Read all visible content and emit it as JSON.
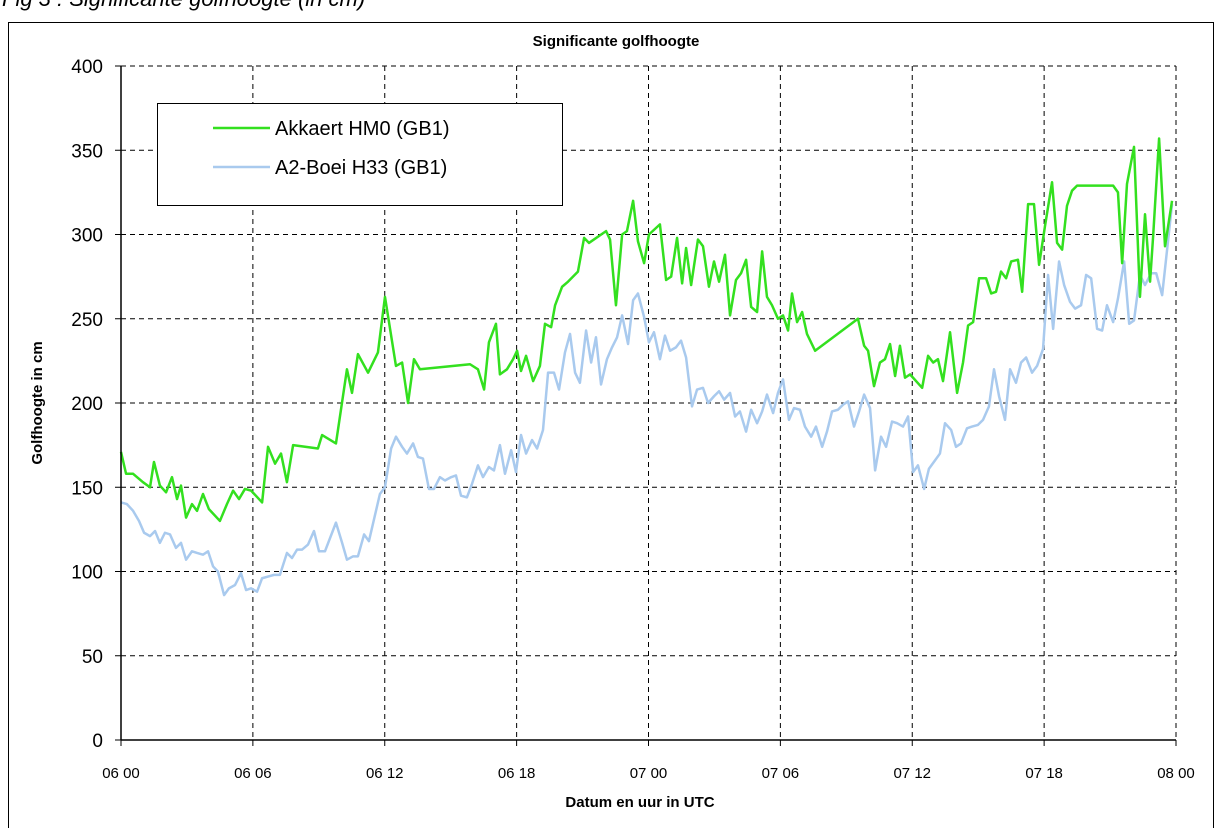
{
  "chart_data": {
    "type": "line",
    "caption": "Fig 3 : Significante golfhoogte (in cm)",
    "title": "Significante golfhoogte",
    "x_label": "Datum en uur in UTC",
    "y_label": "Golfhoogte in cm",
    "xlim": [
      0,
      48
    ],
    "xticks": [
      {
        "value": 0,
        "label": "06 00"
      },
      {
        "value": 6,
        "label": "06 06"
      },
      {
        "value": 12,
        "label": "06 12"
      },
      {
        "value": 18,
        "label": "06 18"
      },
      {
        "value": 24,
        "label": "07 00"
      },
      {
        "value": 30,
        "label": "07 06"
      },
      {
        "value": 36,
        "label": "07 12"
      },
      {
        "value": 42,
        "label": "07 18"
      },
      {
        "value": 48,
        "label": "08 00"
      }
    ],
    "ylim": [
      0,
      400
    ],
    "yticks": [
      0,
      50,
      100,
      150,
      200,
      250,
      300,
      350,
      400
    ],
    "grid": true,
    "legend": "upper left",
    "series": [
      {
        "name": "Akkaert HM0 (GB1)",
        "color": "#33e01f",
        "x": [
          0,
          0.23,
          0.55,
          1.0,
          1.32,
          1.5,
          1.77,
          2.05,
          2.32,
          2.55,
          2.73,
          2.96,
          3.23,
          3.46,
          3.73,
          4.0,
          4.5,
          4.82,
          5.1,
          5.37,
          5.64,
          5.92,
          6.42,
          6.69,
          7.01,
          7.28,
          7.55,
          7.83,
          8.96,
          9.15,
          9.78,
          10.28,
          10.51,
          10.78,
          11.24,
          11.69,
          12.01,
          12.51,
          12.79,
          13.06,
          13.33,
          13.6,
          15.88,
          16.24,
          16.52,
          16.74,
          17.06,
          17.24,
          17.56,
          17.84,
          18.02,
          18.2,
          18.43,
          18.75,
          19.06,
          19.29,
          19.57,
          19.75,
          20.07,
          20.34,
          20.79,
          21.07,
          21.29,
          22.07,
          22.25,
          22.52,
          22.8,
          23.02,
          23.3,
          23.52,
          23.8,
          24.02,
          24.52,
          24.8,
          25.03,
          25.3,
          25.53,
          25.71,
          25.94,
          26.25,
          26.48,
          26.75,
          26.98,
          27.21,
          27.48,
          27.71,
          27.98,
          28.21,
          28.44,
          28.67,
          28.94,
          29.17,
          29.39,
          29.62,
          29.89,
          30.12,
          30.35,
          30.53,
          30.76,
          30.99,
          31.21,
          31.58,
          33.53,
          33.81,
          33.99,
          34.26,
          34.53,
          34.76,
          34.99,
          35.22,
          35.44,
          35.67,
          35.9,
          36.45,
          36.72,
          36.95,
          37.17,
          37.4,
          37.72,
          38.04,
          38.31,
          38.54,
          38.77,
          39.04,
          39.36,
          39.59,
          39.81,
          40.04,
          40.27,
          40.5,
          40.81,
          41.0,
          41.27,
          41.54,
          41.77,
          42.04,
          42.36,
          42.59,
          42.82,
          43.04,
          43.27,
          43.5,
          45.14,
          45.36,
          45.55,
          45.77,
          46.09,
          46.36,
          46.59,
          46.82,
          46.96,
          47.23,
          47.5,
          47.82
        ],
        "values": [
          171,
          158,
          158,
          153,
          150,
          165,
          151,
          147,
          156,
          143,
          151,
          132,
          140,
          136,
          146,
          137,
          130,
          140,
          148,
          143,
          149,
          148,
          141,
          174,
          164,
          170,
          153,
          175,
          173,
          181,
          176,
          220,
          206,
          229,
          218,
          230,
          263,
          222,
          224,
          200,
          226,
          220,
          223,
          220,
          208,
          236,
          247,
          217,
          220,
          226,
          231,
          219,
          228,
          213,
          222,
          247,
          245,
          258,
          269,
          272,
          278,
          298,
          295,
          302,
          297,
          258,
          300,
          302,
          320,
          296,
          283,
          300,
          306,
          273,
          275,
          298,
          271,
          292,
          270,
          297,
          293,
          269,
          284,
          272,
          288,
          252,
          273,
          277,
          285,
          257,
          254,
          290,
          263,
          258,
          250,
          252,
          243,
          265,
          248,
          254,
          241,
          231,
          250,
          234,
          231,
          210,
          224,
          226,
          235,
          216,
          234,
          215,
          217,
          209,
          228,
          224,
          226,
          213,
          242,
          206,
          224,
          246,
          248,
          274,
          274,
          265,
          266,
          278,
          274,
          284,
          285,
          266,
          318,
          318,
          282,
          305,
          331,
          295,
          291,
          317,
          326,
          329,
          329,
          325,
          283,
          330,
          352,
          263,
          312,
          272,
          299,
          357,
          293,
          320
        ]
      },
      {
        "name": "A2-Boei H33 (GB1)",
        "color": "#a9caee",
        "x": [
          0,
          0.27,
          0.55,
          0.82,
          1.05,
          1.32,
          1.55,
          1.77,
          2.0,
          2.23,
          2.5,
          2.73,
          2.96,
          3.23,
          3.46,
          3.73,
          3.96,
          4.19,
          4.41,
          4.69,
          4.91,
          5.19,
          5.46,
          5.69,
          5.92,
          6.19,
          6.42,
          6.69,
          6.96,
          7.23,
          7.55,
          7.78,
          8.01,
          8.24,
          8.51,
          8.78,
          9.01,
          9.28,
          9.78,
          10.06,
          10.28,
          10.56,
          10.78,
          11.06,
          11.28,
          11.78,
          12.01,
          12.29,
          12.51,
          12.79,
          13.01,
          13.29,
          13.51,
          13.74,
          14.01,
          14.24,
          14.51,
          14.74,
          15.02,
          15.24,
          15.47,
          15.74,
          15.97,
          16.24,
          16.47,
          16.74,
          16.97,
          17.24,
          17.47,
          17.75,
          17.97,
          18.2,
          18.43,
          18.7,
          18.93,
          19.2,
          19.43,
          19.7,
          19.93,
          20.2,
          20.43,
          20.66,
          20.88,
          21.16,
          21.39,
          21.61,
          21.84,
          22.11,
          22.34,
          22.57,
          22.8,
          23.07,
          23.3,
          23.52,
          23.8,
          24.02,
          24.25,
          24.52,
          24.75,
          24.98,
          25.25,
          25.48,
          25.71,
          25.98,
          26.21,
          26.48,
          26.71,
          26.98,
          27.21,
          27.44,
          27.71,
          27.94,
          28.16,
          28.44,
          28.67,
          28.94,
          29.17,
          29.39,
          29.67,
          29.89,
          30.12,
          30.39,
          30.62,
          30.89,
          31.12,
          31.4,
          31.62,
          31.9,
          32.12,
          32.35,
          32.62,
          32.85,
          33.08,
          33.35,
          33.58,
          33.81,
          34.08,
          34.31,
          34.58,
          34.81,
          35.08,
          35.31,
          35.58,
          35.81,
          36.04,
          36.26,
          36.54,
          36.76,
          37.04,
          37.26,
          37.49,
          37.77,
          37.99,
          38.22,
          38.49,
          38.72,
          38.99,
          39.22,
          39.49,
          39.72,
          39.95,
          40.22,
          40.45,
          40.72,
          40.95,
          41.18,
          41.45,
          41.68,
          41.95,
          42.18,
          42.41,
          42.68,
          42.91,
          43.18,
          43.41,
          43.68,
          43.91,
          44.14,
          44.41,
          44.64,
          44.86,
          45.14,
          45.36,
          45.64,
          45.87,
          46.09,
          46.36,
          46.59,
          46.87,
          47.1,
          47.37,
          47.82
        ],
        "values": [
          141,
          140,
          136,
          130,
          123,
          121,
          124,
          117,
          123,
          122,
          114,
          117,
          107,
          112,
          111,
          110,
          112,
          103,
          100,
          86,
          90,
          92,
          99,
          89,
          90,
          88,
          96,
          97,
          98,
          98,
          111,
          108,
          113,
          113,
          116,
          124,
          112,
          112,
          129,
          117,
          107,
          109,
          109,
          122,
          118,
          146,
          150,
          173,
          180,
          174,
          170,
          176,
          168,
          167,
          149,
          149,
          156,
          154,
          156,
          157,
          145,
          144,
          152,
          163,
          156,
          162,
          160,
          175,
          158,
          172,
          159,
          181,
          170,
          178,
          173,
          184,
          218,
          218,
          208,
          230,
          241,
          218,
          212,
          243,
          224,
          239,
          211,
          226,
          233,
          239,
          252,
          235,
          261,
          265,
          251,
          236,
          242,
          226,
          240,
          231,
          233,
          237,
          227,
          198,
          208,
          209,
          200,
          204,
          207,
          202,
          206,
          192,
          195,
          183,
          196,
          188,
          195,
          205,
          194,
          206,
          214,
          190,
          197,
          196,
          186,
          180,
          186,
          174,
          183,
          195,
          196,
          199,
          201,
          186,
          195,
          205,
          197,
          160,
          180,
          174,
          189,
          188,
          186,
          192,
          159,
          163,
          149,
          161,
          166,
          170,
          188,
          184,
          174,
          176,
          185,
          186,
          187,
          190,
          198,
          220,
          204,
          190,
          220,
          212,
          224,
          227,
          218,
          222,
          232,
          276,
          244,
          284,
          270,
          260,
          256,
          258,
          276,
          274,
          244,
          243,
          258,
          248,
          262,
          284,
          247,
          249,
          276,
          270,
          277,
          277,
          264,
          318
        ]
      }
    ]
  }
}
